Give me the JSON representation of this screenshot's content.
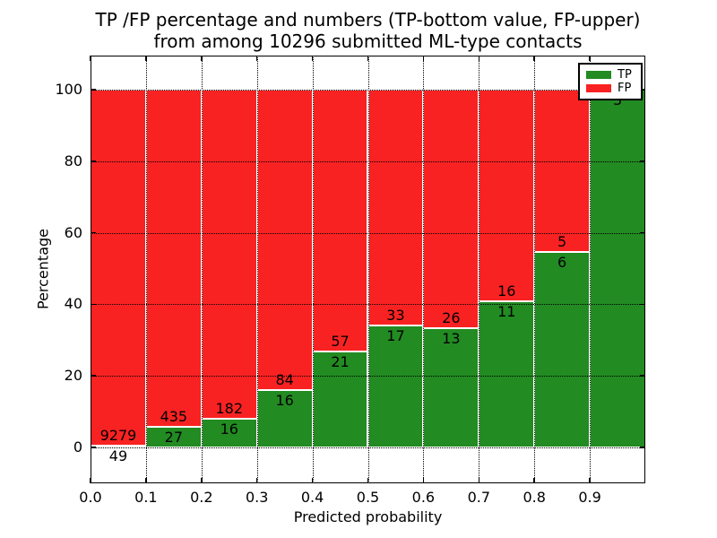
{
  "title": {
    "line1": "TP /FP percentage and numbers (TP-bottom value, FP-upper)",
    "line2": "from among 10296 submitted ML-type contacts"
  },
  "axes": {
    "xlabel": "Predicted probability",
    "ylabel": "Percentage",
    "x_ticks": [
      "0.0",
      "0.1",
      "0.2",
      "0.3",
      "0.4",
      "0.5",
      "0.6",
      "0.7",
      "0.8",
      "0.9"
    ],
    "y_ticks": [
      "0",
      "20",
      "40",
      "60",
      "80",
      "100"
    ]
  },
  "legend": {
    "items": [
      {
        "label": "TP",
        "color": "#228B22"
      },
      {
        "label": "FP",
        "color": "#F92222"
      }
    ]
  },
  "chart_data": {
    "type": "bar",
    "stacked": true,
    "normalized_to_percent": true,
    "title": "TP /FP percentage and numbers (TP-bottom value, FP-upper) from among 10296 submitted ML-type contacts",
    "xlabel": "Predicted probability",
    "ylabel": "Percentage",
    "total_contacts": 10296,
    "bins": [
      "0.0-0.1",
      "0.1-0.2",
      "0.2-0.3",
      "0.3-0.4",
      "0.4-0.5",
      "0.5-0.6",
      "0.6-0.7",
      "0.7-0.8",
      "0.8-0.9",
      "0.9-1.0"
    ],
    "series": [
      {
        "name": "TP",
        "color": "#228B22",
        "values": [
          49,
          27,
          16,
          16,
          21,
          17,
          13,
          11,
          6,
          3
        ]
      },
      {
        "name": "FP",
        "color": "#F92222",
        "values": [
          9279,
          435,
          182,
          84,
          57,
          33,
          26,
          16,
          5,
          0
        ]
      }
    ],
    "tp_percent": [
      0.53,
      5.84,
      8.08,
      16.0,
      26.92,
      34.0,
      33.33,
      40.74,
      54.55,
      100.0
    ],
    "xlim": [
      0.0,
      1.0
    ],
    "ylim": [
      -10,
      109.5
    ],
    "grid": "dotted, over bars",
    "legend_position": "upper right"
  }
}
